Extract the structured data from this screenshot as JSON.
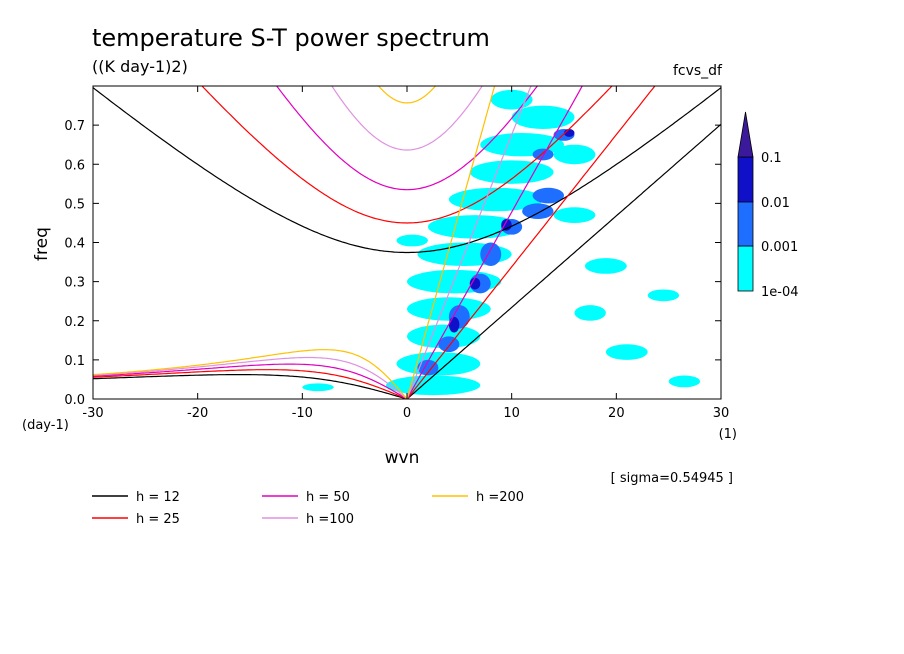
{
  "chart_data": {
    "type": "heatmap",
    "title": "temperature S-T power spectrum",
    "subtitle": "((K day-1)2)",
    "top_right_label": "fcvs_df",
    "xlabel": "wvn",
    "ylabel": "freq",
    "x_unit": "(1)",
    "y_unit": "(day-1)",
    "xlim": [
      -30,
      30
    ],
    "ylim": [
      0,
      0.8
    ],
    "x_ticks": [
      -30,
      -20,
      -10,
      0,
      10,
      20,
      30
    ],
    "x_tick_labels": [
      "-30",
      "-20",
      "-10",
      "0",
      "10",
      "20",
      "30"
    ],
    "y_ticks": [
      0,
      0.1,
      0.2,
      0.3,
      0.4,
      0.5,
      0.6,
      0.7
    ],
    "y_tick_labels": [
      "0.0",
      "0.1",
      "0.2",
      "0.3",
      "0.4",
      "0.5",
      "0.6",
      "0.7"
    ],
    "sigma_label": "[ sigma=0.54945 ]",
    "colorbar": {
      "levels": [
        "1e-04",
        "0.001",
        "0.01",
        "0.1"
      ],
      "colors": [
        "#00ffff",
        "#1e6fff",
        "#1010c8",
        "#3a1a9a"
      ]
    },
    "contour_cells": [
      {
        "x": 8,
        "y": 0.74,
        "w": 4,
        "h": 0.05,
        "level": 0
      },
      {
        "x": 10,
        "y": 0.69,
        "w": 6,
        "h": 0.06,
        "level": 0
      },
      {
        "x": 7,
        "y": 0.62,
        "w": 8,
        "h": 0.06,
        "level": 0
      },
      {
        "x": 6,
        "y": 0.55,
        "w": 8,
        "h": 0.06,
        "level": 0
      },
      {
        "x": 4,
        "y": 0.48,
        "w": 9,
        "h": 0.06,
        "level": 0
      },
      {
        "x": 2,
        "y": 0.41,
        "w": 9,
        "h": 0.06,
        "level": 0
      },
      {
        "x": 1,
        "y": 0.34,
        "w": 9,
        "h": 0.06,
        "level": 0
      },
      {
        "x": 0,
        "y": 0.27,
        "w": 9,
        "h": 0.06,
        "level": 0
      },
      {
        "x": 0,
        "y": 0.2,
        "w": 8,
        "h": 0.06,
        "level": 0
      },
      {
        "x": 0,
        "y": 0.13,
        "w": 7,
        "h": 0.06,
        "level": 0
      },
      {
        "x": -1,
        "y": 0.06,
        "w": 8,
        "h": 0.06,
        "level": 0
      },
      {
        "x": -2,
        "y": 0.01,
        "w": 9,
        "h": 0.05,
        "level": 0
      },
      {
        "x": 14,
        "y": 0.45,
        "w": 4,
        "h": 0.04,
        "level": 0
      },
      {
        "x": 17,
        "y": 0.32,
        "w": 4,
        "h": 0.04,
        "level": 0
      },
      {
        "x": 16,
        "y": 0.2,
        "w": 3,
        "h": 0.04,
        "level": 0
      },
      {
        "x": 19,
        "y": 0.1,
        "w": 4,
        "h": 0.04,
        "level": 0
      },
      {
        "x": -1,
        "y": 0.39,
        "w": 3,
        "h": 0.03,
        "level": 0
      },
      {
        "x": 23,
        "y": 0.25,
        "w": 3,
        "h": 0.03,
        "level": 0
      },
      {
        "x": 25,
        "y": 0.03,
        "w": 3,
        "h": 0.03,
        "level": 0
      },
      {
        "x": -10,
        "y": 0.02,
        "w": 3,
        "h": 0.02,
        "level": 0
      },
      {
        "x": 14,
        "y": 0.6,
        "w": 4,
        "h": 0.05,
        "level": 0
      },
      {
        "x": 12,
        "y": 0.5,
        "w": 3,
        "h": 0.04,
        "level": 1
      },
      {
        "x": 11,
        "y": 0.46,
        "w": 3,
        "h": 0.04,
        "level": 1
      },
      {
        "x": 9,
        "y": 0.42,
        "w": 2,
        "h": 0.04,
        "level": 1
      },
      {
        "x": 7,
        "y": 0.34,
        "w": 2,
        "h": 0.06,
        "level": 1
      },
      {
        "x": 6,
        "y": 0.27,
        "w": 2,
        "h": 0.05,
        "level": 1
      },
      {
        "x": 4,
        "y": 0.18,
        "w": 2,
        "h": 0.06,
        "level": 1
      },
      {
        "x": 3,
        "y": 0.12,
        "w": 2,
        "h": 0.04,
        "level": 1
      },
      {
        "x": 1,
        "y": 0.06,
        "w": 2,
        "h": 0.04,
        "level": 1
      },
      {
        "x": 12,
        "y": 0.61,
        "w": 2,
        "h": 0.03,
        "level": 1
      },
      {
        "x": 14,
        "y": 0.66,
        "w": 2,
        "h": 0.03,
        "level": 1
      },
      {
        "x": 4,
        "y": 0.17,
        "w": 1,
        "h": 0.04,
        "level": 2
      },
      {
        "x": 6,
        "y": 0.28,
        "w": 1,
        "h": 0.03,
        "level": 2
      },
      {
        "x": 9,
        "y": 0.43,
        "w": 1,
        "h": 0.03,
        "level": 2
      },
      {
        "x": 15,
        "y": 0.67,
        "w": 1,
        "h": 0.02,
        "level": 2
      }
    ],
    "series": [
      {
        "name": "h = 12",
        "color": "#000000"
      },
      {
        "name": "h = 25",
        "color": "#ff0000"
      },
      {
        "name": "h = 50",
        "color": "#e000c0"
      },
      {
        "name": "h =100",
        "color": "#e090e0"
      },
      {
        "name": "h =200",
        "color": "#ffc000"
      }
    ]
  }
}
